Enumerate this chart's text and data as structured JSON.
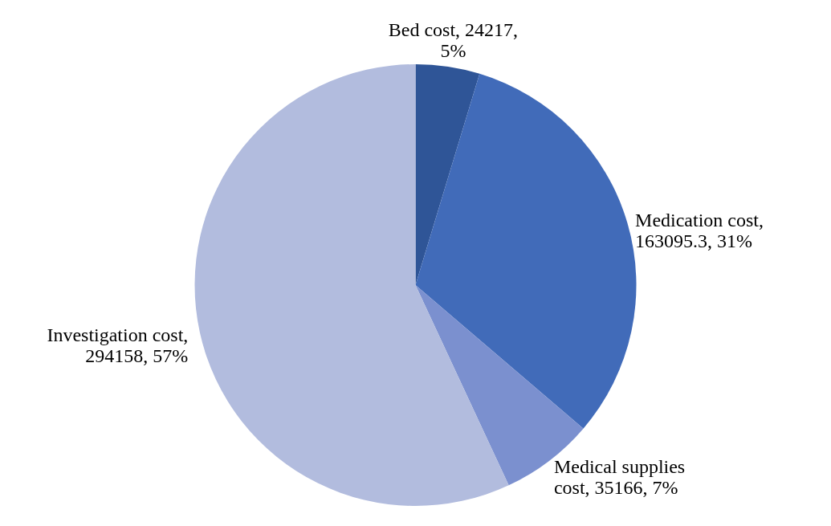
{
  "chart_data": {
    "type": "pie",
    "categories": [
      "Bed cost",
      "Medication cost",
      "Medical supplies cost",
      "Investigation cost"
    ],
    "values": [
      24217,
      163095.3,
      35166,
      294158
    ],
    "value_labels": [
      ", 24217, 5%",
      ", 163095.3, 31%",
      ", 35166, 7%",
      ", 294158, 57%"
    ],
    "colors": [
      "#2f5597",
      "#416bb9",
      "#7b90cf",
      "#b2bcde"
    ]
  }
}
